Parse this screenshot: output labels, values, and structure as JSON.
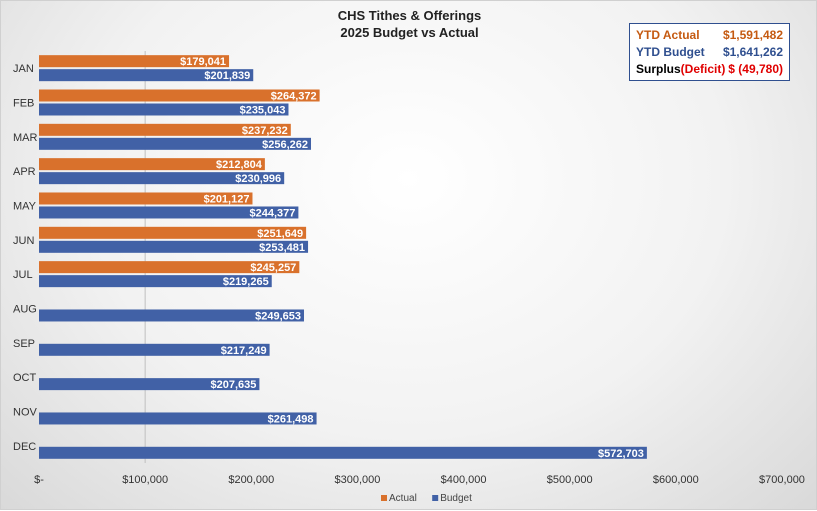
{
  "chart_data": {
    "type": "bar",
    "orientation": "horizontal",
    "title": [
      "CHS Tithes & Offerings",
      "2025 Budget vs Actual"
    ],
    "categories": [
      "JAN",
      "FEB",
      "MAR",
      "APR",
      "MAY",
      "JUN",
      "JUL",
      "AUG",
      "SEP",
      "OCT",
      "NOV",
      "DEC"
    ],
    "series": [
      {
        "name": "Actual",
        "color": "#d9712c",
        "values": [
          179041,
          264372,
          237232,
          212804,
          201127,
          251649,
          245257,
          null,
          null,
          null,
          null,
          null
        ],
        "labels": [
          "$179,041",
          "$264,372",
          "$237,232",
          "$212,804",
          "$201,127",
          "$251,649",
          "$245,257",
          "",
          "",
          "",
          "",
          ""
        ]
      },
      {
        "name": "Budget",
        "color": "#4161a6",
        "values": [
          201839,
          235043,
          256262,
          230996,
          244377,
          253481,
          219265,
          249653,
          217249,
          207635,
          261498,
          572703
        ],
        "labels": [
          "$201,839",
          "$235,043",
          "$256,262",
          "$230,996",
          "$244,377",
          "$253,481",
          "$219,265",
          "$249,653",
          "$217,249",
          "$207,635",
          "$261,498",
          "$572,703"
        ]
      }
    ],
    "xlim": [
      0,
      700000
    ],
    "x_ticks": [
      0,
      100000,
      200000,
      300000,
      400000,
      500000,
      600000,
      700000
    ],
    "x_tick_labels": [
      "$-",
      "$100,000",
      "$200,000",
      "$300,000",
      "$400,000",
      "$500,000",
      "$600,000",
      "$700,000"
    ],
    "gridline_at": 100000,
    "legend_position": "bottom"
  },
  "summary": {
    "ytd_actual_label": "YTD Actual",
    "ytd_actual_value": "$1,591,482",
    "ytd_budget_label": "YTD Budget",
    "ytd_budget_value": "$1,641,262",
    "surplus_label": "Surplus",
    "deficit_label": "(Deficit)",
    "surplus_value": "$ (49,780)",
    "colors": {
      "actual": "#c55a11",
      "budget": "#2f4f8f",
      "deficit": "#e00000"
    }
  }
}
